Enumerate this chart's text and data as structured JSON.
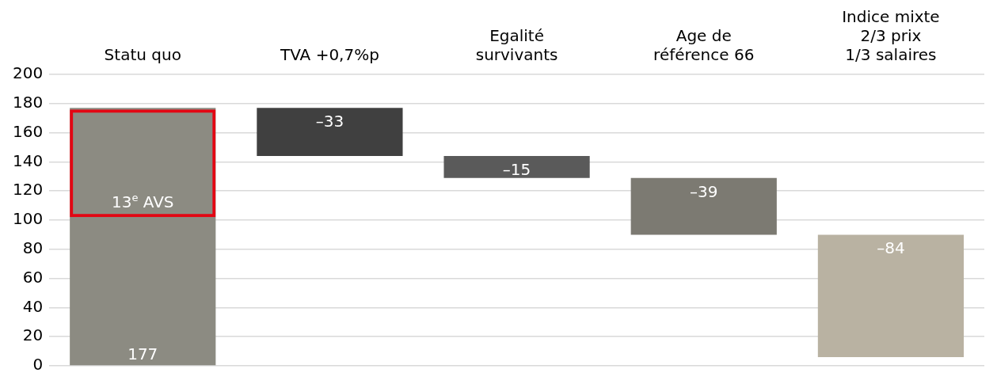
{
  "chart_data": {
    "type": "bar",
    "categories": [
      "Statu quo",
      "TVA +0,7%p",
      "Egalité\nsurvivants",
      "Age de\nréférence 66",
      "Indice mixte\n2/3 prix\n1/3 salaires"
    ],
    "series": [
      {
        "colors": [
          "#8c8b82",
          "#404040",
          "#5a5a5a",
          "#7c7a72",
          "#b9b2a2"
        ],
        "values": [
          177,
          -33,
          -15,
          -39,
          -84
        ],
        "base": [
          0,
          177,
          144,
          129,
          90
        ],
        "value_labels": [
          "177",
          "–33",
          "–15",
          "–39",
          "–84"
        ]
      },
      {
        "color": "#e30613",
        "values": [
          74,
          null,
          null,
          null,
          null
        ],
        "base": [
          102,
          null,
          null,
          null,
          null
        ]
      }
    ],
    "annotations": [
      "13$^{e}$ AVS"
    ],
    "ylim": [
      0,
      200
    ],
    "yticks": [
      0,
      20,
      40,
      60,
      80,
      100,
      120,
      140,
      160,
      180,
      200
    ],
    "grid": "y",
    "legend": false
  }
}
